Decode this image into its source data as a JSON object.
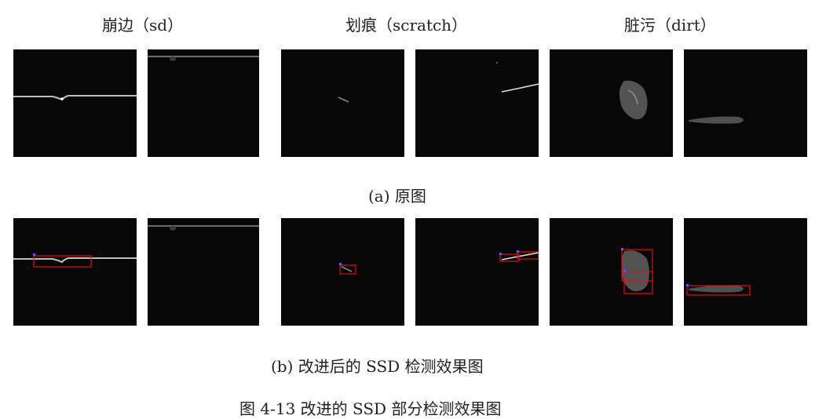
{
  "categories": [
    {
      "name": "崩边（sd）"
    },
    {
      "name": "划痕（scratch）"
    },
    {
      "name": "脏污（dirt）"
    }
  ],
  "row_a_caption": "(a)  原图",
  "row_b_caption": "(b)  改进后的 SSD 检测效果图",
  "figure_caption": "图 4-13  改进的 SSD 部分检测效果图",
  "colors": {
    "background": "#ffffff",
    "image_background": "#070707",
    "detection_box": "#e01010",
    "box_marker": "#5a5aff"
  }
}
